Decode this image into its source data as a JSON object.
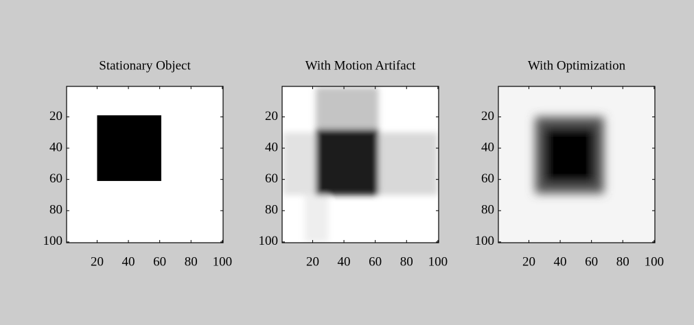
{
  "chart_data": [
    {
      "type": "image",
      "title": "Stationary Object",
      "xlim": [
        0.5,
        100.5
      ],
      "ylim": [
        0.5,
        100.5
      ],
      "xticks": [
        20,
        40,
        60,
        80,
        100
      ],
      "yticks": [
        20,
        40,
        60,
        80,
        100
      ],
      "background": "#ffffff",
      "blur": 0,
      "rects": [
        {
          "x": [
            20,
            61
          ],
          "y": [
            19,
            61
          ],
          "color": "#000000"
        }
      ]
    },
    {
      "type": "image",
      "title": "With Motion Artifact",
      "xlim": [
        0.5,
        100.5
      ],
      "ylim": [
        0.5,
        100.5
      ],
      "xticks": [
        20,
        40,
        60,
        80,
        100
      ],
      "yticks": [
        20,
        40,
        60,
        80,
        100
      ],
      "background": "#ffffff",
      "blur": 2,
      "rects": [
        {
          "x": [
            22,
            62
          ],
          "y": [
            1,
            28
          ],
          "color": "#c4c4c4"
        },
        {
          "x": [
            62,
            100
          ],
          "y": [
            30,
            70
          ],
          "color": "#d8d8d8"
        },
        {
          "x": [
            1,
            22
          ],
          "y": [
            30,
            70
          ],
          "color": "#e2e2e2"
        },
        {
          "x": [
            15,
            30
          ],
          "y": [
            70,
            100
          ],
          "color": "#eeeeee"
        },
        {
          "x": [
            22,
            62
          ],
          "y": [
            28,
            70
          ],
          "color": "#1e1e1e"
        }
      ]
    },
    {
      "type": "image",
      "title": "With Optimization",
      "xlim": [
        0.5,
        100.5
      ],
      "ylim": [
        0.5,
        100.5
      ],
      "xticks": [
        20,
        40,
        60,
        80,
        100
      ],
      "yticks": [
        20,
        40,
        60,
        80,
        100
      ],
      "background": "#f5f5f5",
      "blur": 3,
      "rects": [
        {
          "x": [
            24,
            68
          ],
          "y": [
            20,
            69
          ],
          "color": "#555555"
        },
        {
          "x": [
            30,
            62
          ],
          "y": [
            27,
            62
          ],
          "color": "#000000"
        }
      ]
    }
  ]
}
